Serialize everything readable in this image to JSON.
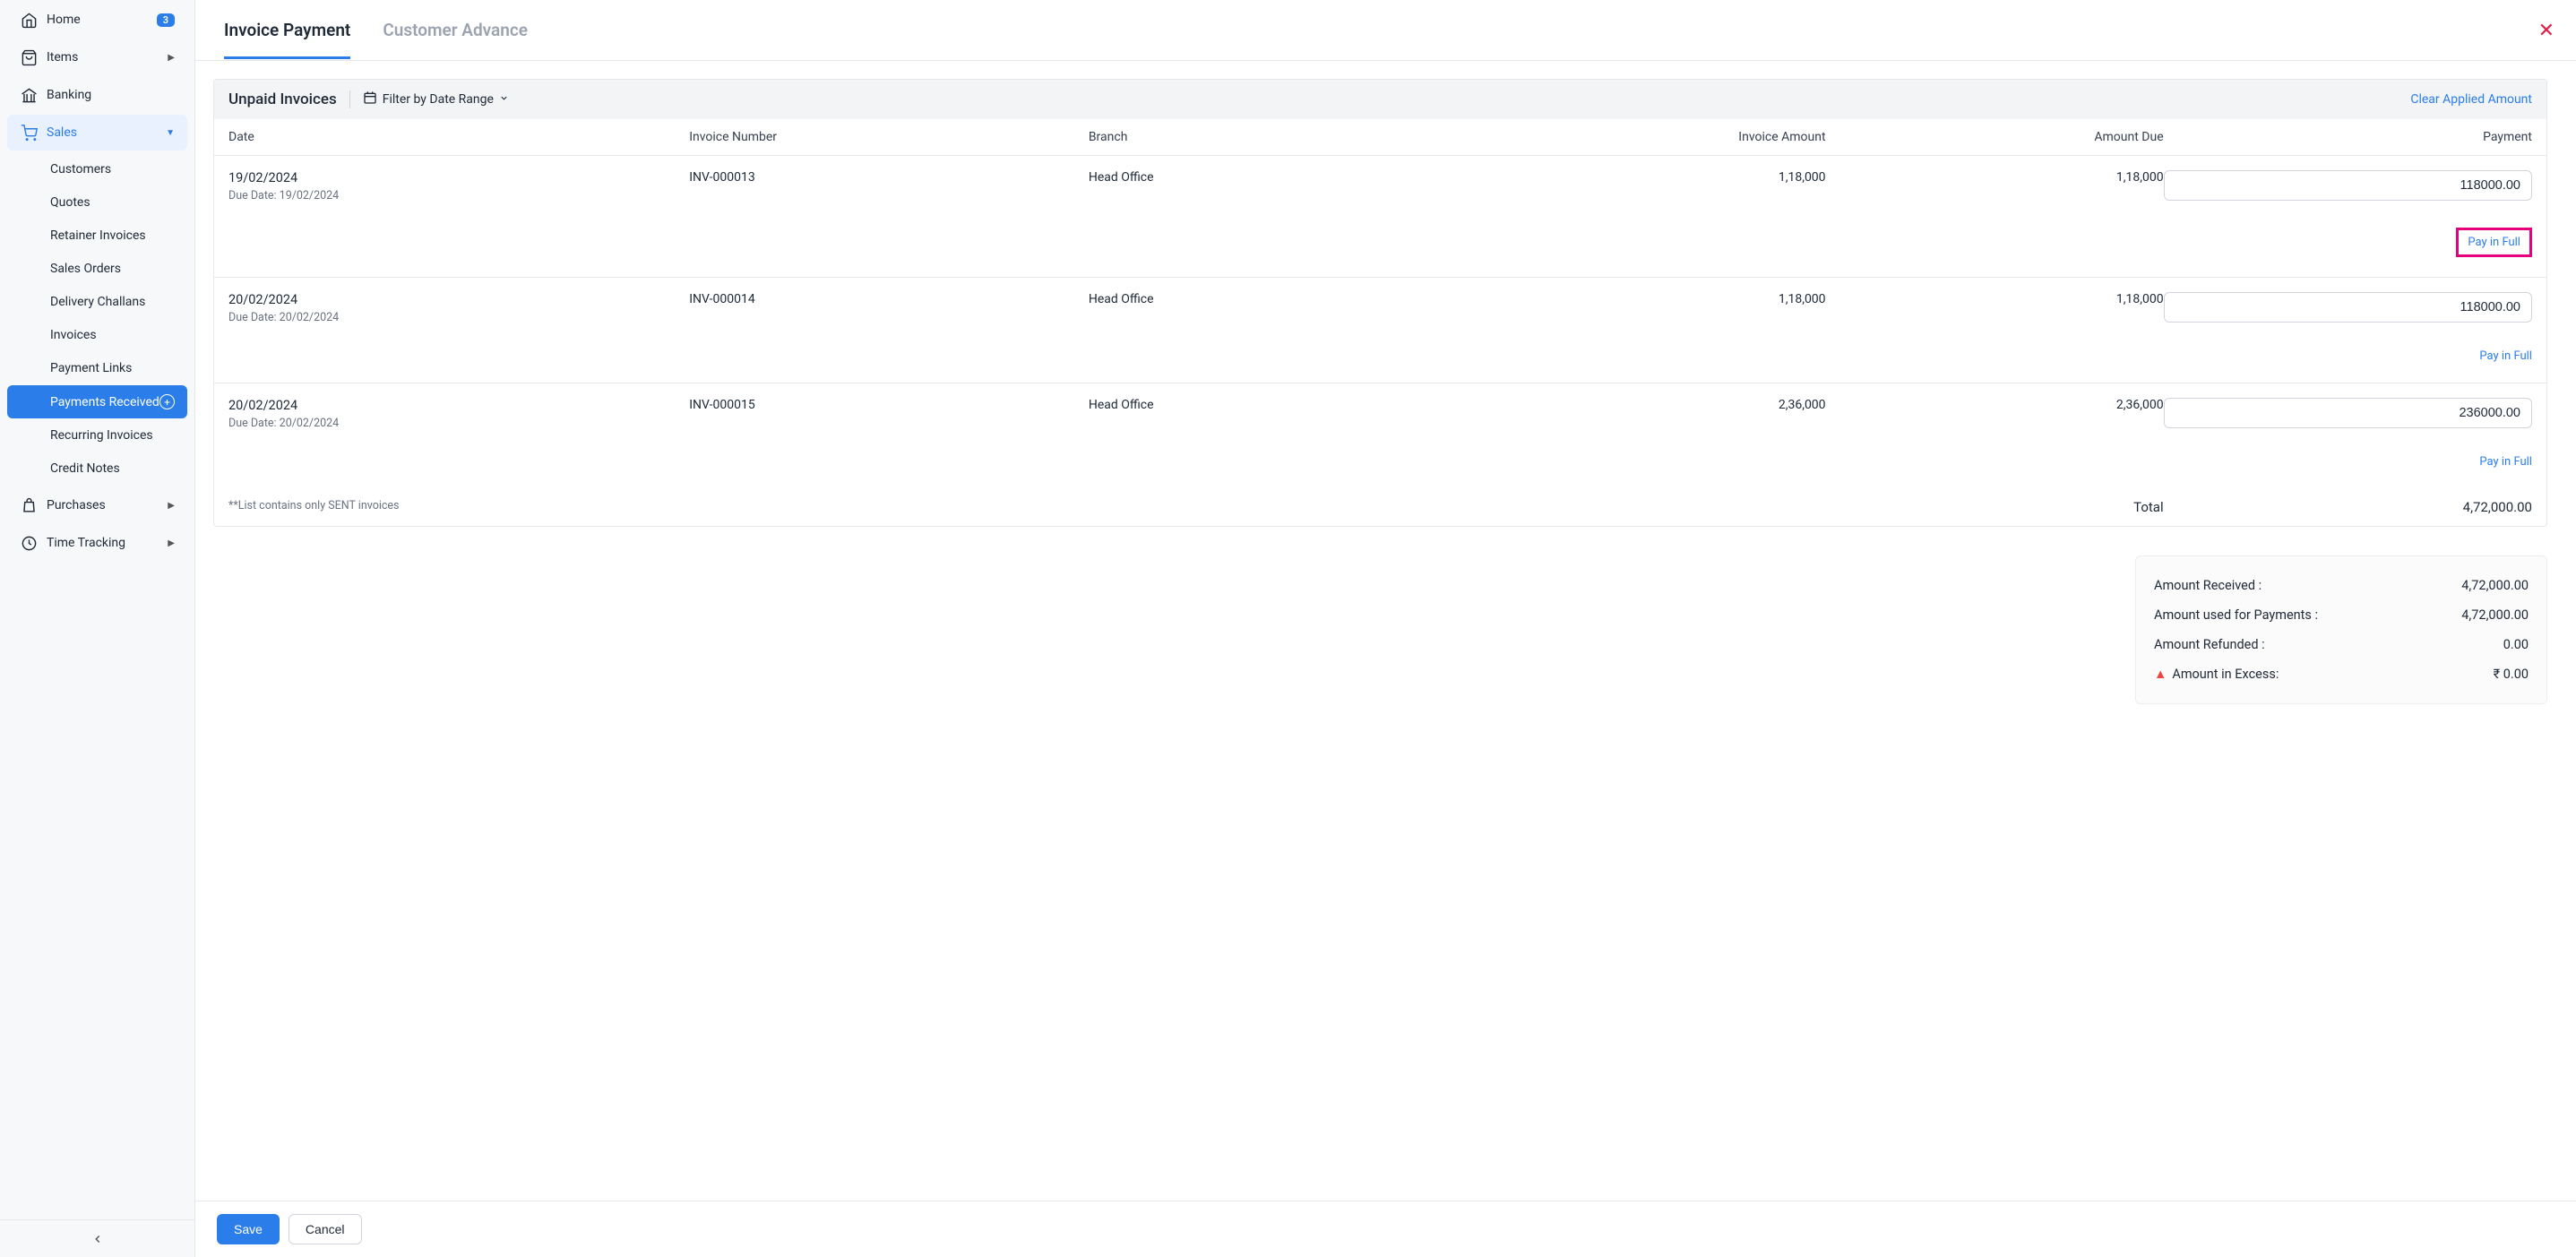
{
  "sidebar": {
    "nav": [
      {
        "label": "Home",
        "icon": "home",
        "badge": "3"
      },
      {
        "label": "Items",
        "icon": "bag",
        "chevron": true
      },
      {
        "label": "Banking",
        "icon": "bank"
      },
      {
        "label": "Sales",
        "icon": "cart",
        "chevron": true,
        "active": true
      }
    ],
    "salesSub": [
      {
        "label": "Customers"
      },
      {
        "label": "Quotes"
      },
      {
        "label": "Retainer Invoices"
      },
      {
        "label": "Sales Orders"
      },
      {
        "label": "Delivery Challans"
      },
      {
        "label": "Invoices"
      },
      {
        "label": "Payment Links"
      },
      {
        "label": "Payments Received",
        "active": true,
        "plus": true
      },
      {
        "label": "Recurring Invoices"
      },
      {
        "label": "Credit Notes"
      }
    ],
    "navAfter": [
      {
        "label": "Purchases",
        "icon": "bag2",
        "chevron": true
      },
      {
        "label": "Time Tracking",
        "icon": "clock",
        "chevron": true
      }
    ]
  },
  "header": {
    "tabs": [
      {
        "label": "Invoice Payment",
        "active": true
      },
      {
        "label": "Customer Advance"
      }
    ]
  },
  "panel": {
    "title": "Unpaid Invoices",
    "filterLabel": "Filter by Date Range",
    "clearLabel": "Clear Applied Amount"
  },
  "table": {
    "columns": {
      "date": "Date",
      "invoiceNumber": "Invoice Number",
      "branch": "Branch",
      "invoiceAmount": "Invoice Amount",
      "amountDue": "Amount Due",
      "payment": "Payment"
    },
    "dueDatePrefix": "Due Date: ",
    "payInFullLabel": "Pay in Full",
    "rows": [
      {
        "date": "19/02/2024",
        "dueDate": "19/02/2024",
        "invoiceNumber": "INV-000013",
        "branch": "Head Office",
        "invoiceAmount": "1,18,000",
        "amountDue": "1,18,000",
        "payment": "118000.00",
        "highlightPayFull": true
      },
      {
        "date": "20/02/2024",
        "dueDate": "20/02/2024",
        "invoiceNumber": "INV-000014",
        "branch": "Head Office",
        "invoiceAmount": "1,18,000",
        "amountDue": "1,18,000",
        "payment": "118000.00"
      },
      {
        "date": "20/02/2024",
        "dueDate": "20/02/2024",
        "invoiceNumber": "INV-000015",
        "branch": "Head Office",
        "invoiceAmount": "2,36,000",
        "amountDue": "2,36,000",
        "payment": "236000.00"
      }
    ],
    "footnote": "**List contains only SENT invoices",
    "totalLabel": "Total",
    "totalValue": "4,72,000.00"
  },
  "summary": {
    "rows": [
      {
        "label": "Amount Received :",
        "value": "4,72,000.00"
      },
      {
        "label": "Amount used for Payments :",
        "value": "4,72,000.00"
      },
      {
        "label": "Amount Refunded :",
        "value": "0.00"
      },
      {
        "label": "Amount in Excess:",
        "value": "₹ 0.00",
        "warning": true
      }
    ]
  },
  "footer": {
    "save": "Save",
    "cancel": "Cancel"
  },
  "colors": {
    "primary": "#2b7de9",
    "highlight": "#e6007e",
    "danger": "#e11d48"
  }
}
